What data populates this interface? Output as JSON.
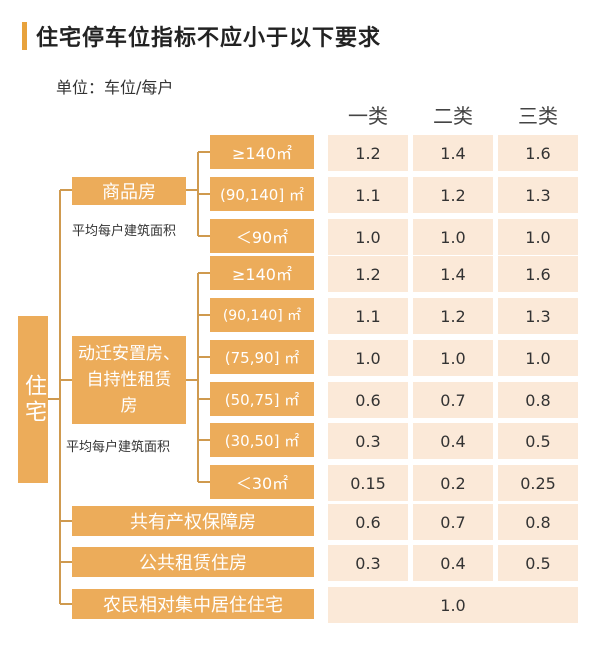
{
  "title": "住宅停车位指标不应小于以下要求",
  "unit": "单位：车位/每户",
  "columns": [
    "一类",
    "二类",
    "三类"
  ],
  "root": "住宅",
  "group1": {
    "label": "商品房",
    "note": "平均每户建筑面积"
  },
  "group2": {
    "label_line1": "动迁安置房、",
    "label_line2": "自持性租赁",
    "label_line3": "房",
    "note": "平均每户建筑面积"
  },
  "rows": [
    {
      "label": "≥140㎡",
      "values": [
        "1.2",
        "1.4",
        "1.6"
      ]
    },
    {
      "label": "(90,140] ㎡",
      "values": [
        "1.1",
        "1.2",
        "1.3"
      ]
    },
    {
      "label": "＜90㎡",
      "values": [
        "1.0",
        "1.0",
        "1.0"
      ]
    },
    {
      "label": "≥140㎡",
      "values": [
        "1.2",
        "1.4",
        "1.6"
      ]
    },
    {
      "label": "(90,140] ㎡",
      "values": [
        "1.1",
        "1.2",
        "1.3"
      ]
    },
    {
      "label": "(75,90] ㎡",
      "values": [
        "1.0",
        "1.0",
        "1.0"
      ]
    },
    {
      "label": "(50,75] ㎡",
      "values": [
        "0.6",
        "0.7",
        "0.8"
      ]
    },
    {
      "label": "(30,50] ㎡",
      "values": [
        "0.3",
        "0.4",
        "0.5"
      ]
    },
    {
      "label": "＜30㎡",
      "values": [
        "0.15",
        "0.2",
        "0.25"
      ]
    },
    {
      "label": "共有产权保障房",
      "values": [
        "0.6",
        "0.7",
        "0.8"
      ]
    },
    {
      "label": "公共租赁住房",
      "values": [
        "0.3",
        "0.4",
        "0.5"
      ]
    },
    {
      "label": "农民相对集中居住住宅",
      "merged_value": "1.0"
    }
  ],
  "colors": {
    "accent": "#ecac5a",
    "cell_bg": "#fbe9d8",
    "title_bar": "#e8a23c"
  }
}
